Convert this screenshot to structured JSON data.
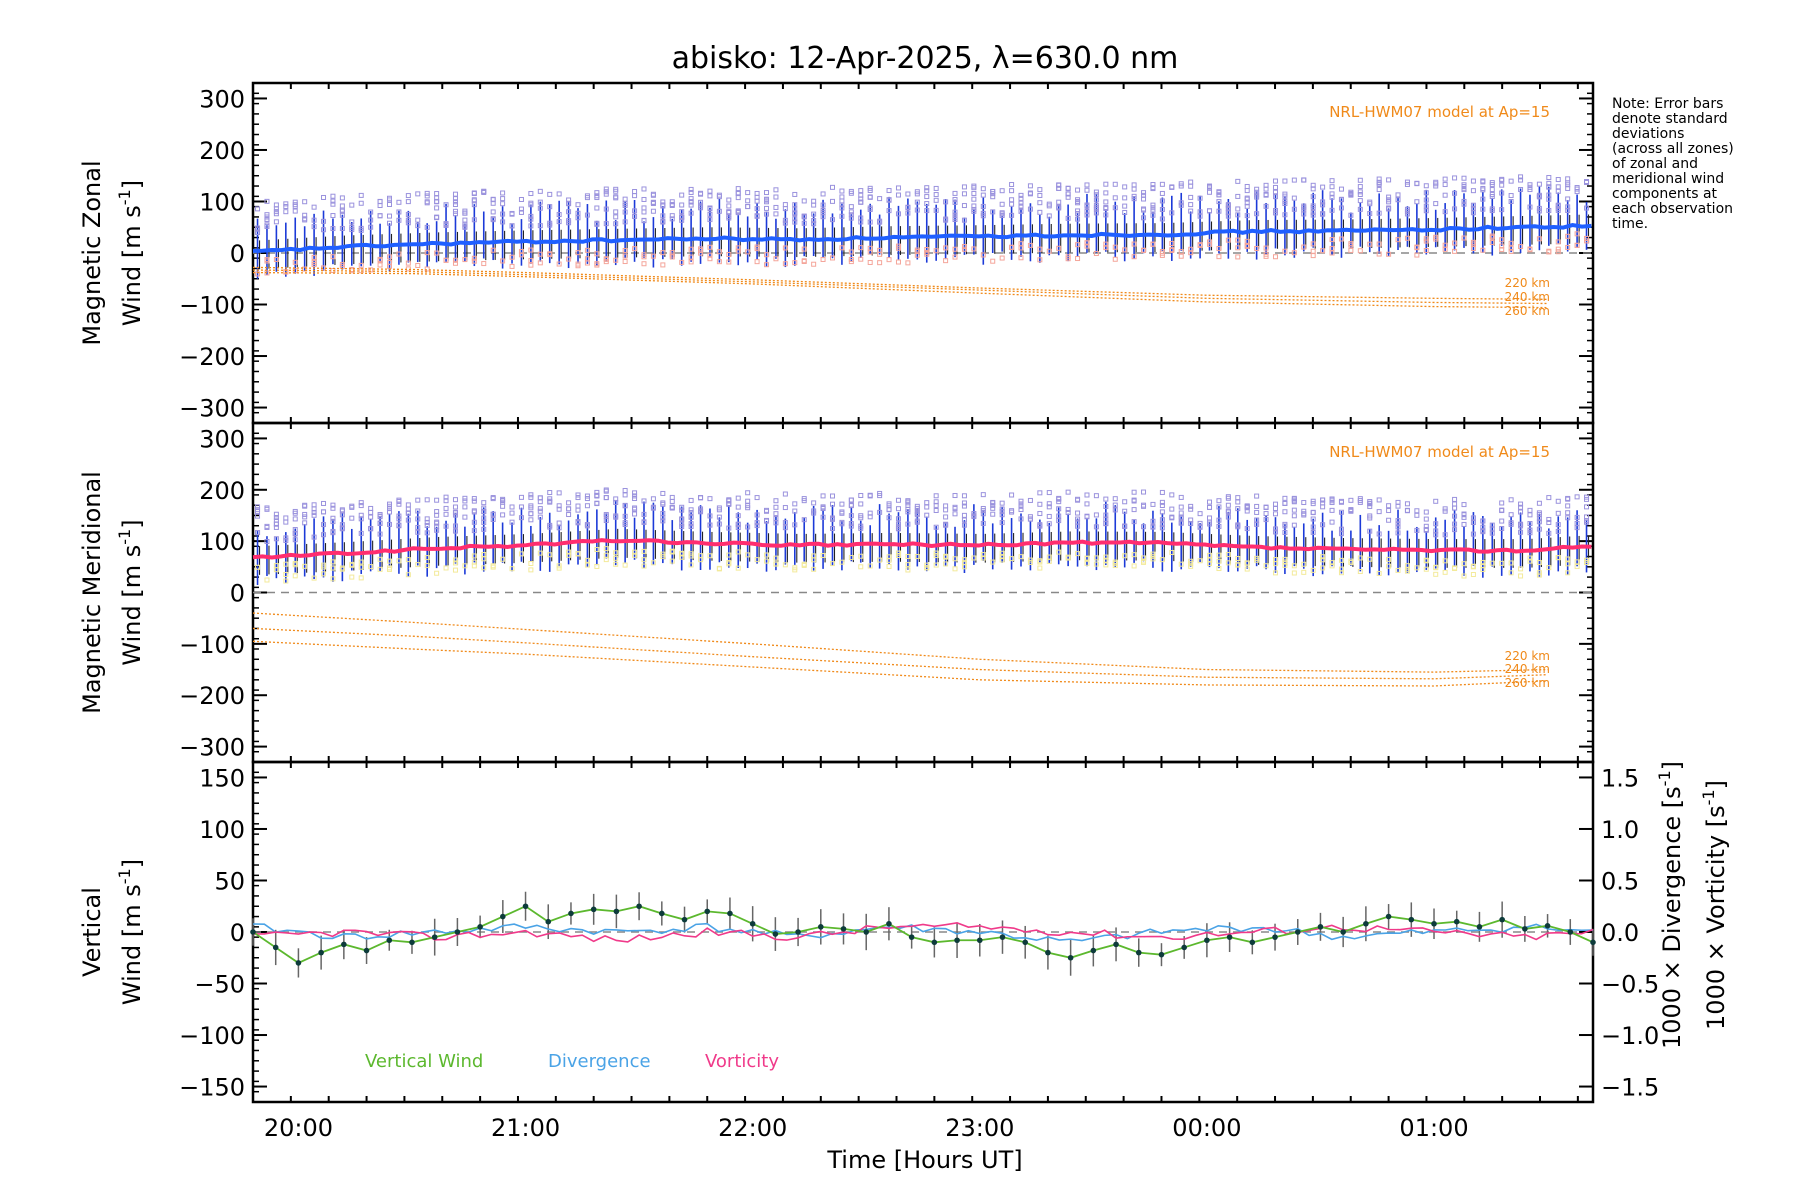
{
  "title": "abisko: 12-Apr-2025, λ=630.0 nm",
  "note": [
    "Note: Error bars",
    "denote standard",
    "deviations",
    "(across all zones)",
    "of zonal and",
    "meridional wind",
    "components at",
    "each observation",
    "time."
  ],
  "colors": {
    "model": "#f08a1a",
    "zonal_mean": "#1f5fff",
    "meridional_mean": "#ff2d6f",
    "spread_high": "#9a92dd",
    "spread_low_zonal": "#f4a59a",
    "spread_low_meridional": "#f3ea9a",
    "zone_bar": "#1c3ad8",
    "vertical": "#5cb82e",
    "divergence": "#4aa3e6",
    "vorticity": "#f03a8a",
    "errorbar": "#666666",
    "zero_line": "#888888"
  },
  "chart_data": [
    {
      "type": "line",
      "panel": "zonal",
      "ylabel": [
        "Magnetic Zonal",
        "Wind [m s",
        "-1",
        "]"
      ],
      "ylim": [
        -330,
        330
      ],
      "yticks": [
        "300",
        "200",
        "100",
        "0",
        "−100",
        "−200",
        "−300"
      ],
      "ytick_values": [
        300,
        200,
        100,
        0,
        -100,
        -200,
        -300
      ],
      "model_label": "NRL-HWM07 model at Ap=15",
      "model_heights": [
        "220 km",
        "240 km",
        "260 km"
      ],
      "series": [
        {
          "name": "Mean zonal wind",
          "x": [
            19.8,
            20.2,
            20.6,
            21.0,
            21.4,
            21.8,
            22.2,
            22.6,
            23.0,
            23.4,
            23.8,
            24.2,
            24.6,
            25.0,
            25.4,
            25.7
          ],
          "values": [
            2,
            12,
            18,
            22,
            25,
            28,
            26,
            30,
            32,
            35,
            36,
            42,
            43,
            46,
            50,
            53
          ]
        },
        {
          "name": "Model 220 km",
          "x": [
            19.8,
            20.5,
            21.0,
            22.0,
            23.0,
            24.0,
            25.0,
            25.5
          ],
          "values": [
            -28,
            -32,
            -38,
            -52,
            -68,
            -82,
            -88,
            -90
          ]
        },
        {
          "name": "Model 240 km",
          "x": [
            19.8,
            20.5,
            21.0,
            22.0,
            23.0,
            24.0,
            25.0,
            25.5
          ],
          "values": [
            -33,
            -36,
            -42,
            -56,
            -72,
            -88,
            -96,
            -98
          ]
        },
        {
          "name": "Model 260 km",
          "x": [
            19.8,
            20.5,
            21.0,
            22.0,
            23.0,
            24.0,
            25.0,
            25.5
          ],
          "values": [
            -38,
            -40,
            -46,
            -60,
            -78,
            -95,
            -104,
            -106
          ]
        }
      ]
    },
    {
      "type": "line",
      "panel": "meridional",
      "ylabel": [
        "Magnetic Meridional",
        "Wind [m s",
        "-1",
        "]"
      ],
      "ylim": [
        -330,
        330
      ],
      "yticks": [
        "300",
        "200",
        "100",
        "0",
        "−100",
        "−200",
        "−300"
      ],
      "ytick_values": [
        300,
        200,
        100,
        0,
        -100,
        -200,
        -300
      ],
      "model_label": "NRL-HWM07 model at Ap=15",
      "model_heights": [
        "220 km",
        "240 km",
        "260 km"
      ],
      "series": [
        {
          "name": "Mean meridional wind",
          "x": [
            19.8,
            20.2,
            20.6,
            21.0,
            21.4,
            21.8,
            22.2,
            22.6,
            23.0,
            23.4,
            23.8,
            24.2,
            24.6,
            25.0,
            25.4,
            25.7
          ],
          "values": [
            68,
            76,
            86,
            92,
            102,
            96,
            92,
            94,
            92,
            97,
            96,
            88,
            84,
            82,
            82,
            90
          ]
        },
        {
          "name": "Model 220 km",
          "x": [
            19.8,
            20.5,
            21.0,
            22.0,
            23.0,
            24.0,
            25.0,
            25.5
          ],
          "values": [
            -40,
            -58,
            -72,
            -100,
            -130,
            -150,
            -155,
            -150
          ]
        },
        {
          "name": "Model 240 km",
          "x": [
            19.8,
            20.5,
            21.0,
            22.0,
            23.0,
            24.0,
            25.0,
            25.5
          ],
          "values": [
            -70,
            -85,
            -98,
            -125,
            -150,
            -165,
            -168,
            -160
          ]
        },
        {
          "name": "Model 260 km",
          "x": [
            19.8,
            20.5,
            21.0,
            22.0,
            23.0,
            24.0,
            25.0,
            25.5
          ],
          "values": [
            -95,
            -110,
            -120,
            -145,
            -170,
            -180,
            -182,
            -172
          ]
        }
      ]
    },
    {
      "type": "line",
      "panel": "vertical",
      "ylabel": [
        "Vertical",
        "Wind [m s",
        "-1",
        "]"
      ],
      "ylim": [
        -165,
        165
      ],
      "yticks": [
        "150",
        "100",
        "50",
        "0",
        "−50",
        "−100",
        "−150"
      ],
      "ytick_values": [
        150,
        100,
        50,
        0,
        -50,
        -100,
        -150
      ],
      "y2lim": [
        -1.65,
        1.65
      ],
      "y2ticks": [
        "1.5",
        "1.0",
        "0.5",
        "0.0",
        "−0.5",
        "−1.0",
        "−1.5"
      ],
      "y2tick_values": [
        1.5,
        1.0,
        0.5,
        0.0,
        -0.5,
        -1.0,
        -1.5
      ],
      "y2label_div": [
        "1000 × Divergence [s",
        "-1",
        "]"
      ],
      "y2label_vor": [
        "1000 × Vorticity [s",
        "-1",
        "]"
      ],
      "legend": [
        "Vertical Wind",
        "Divergence",
        "Vorticity"
      ],
      "series": [
        {
          "name": "Vertical Wind",
          "x": [
            19.8,
            19.9,
            20.0,
            20.1,
            20.2,
            20.3,
            20.4,
            20.5,
            20.6,
            20.7,
            20.8,
            20.9,
            21.0,
            21.1,
            21.2,
            21.3,
            21.4,
            21.5,
            21.6,
            21.7,
            21.8,
            21.9,
            22.0,
            22.1,
            22.2,
            22.3,
            22.4,
            22.5,
            22.6,
            22.7,
            22.8,
            22.9,
            23.0,
            23.1,
            23.2,
            23.3,
            23.4,
            23.5,
            23.6,
            23.7,
            23.8,
            23.9,
            24.0,
            24.1,
            24.2,
            24.3,
            24.4,
            24.5,
            24.6,
            24.7,
            24.8,
            24.9,
            25.0,
            25.1,
            25.2,
            25.3,
            25.4,
            25.5,
            25.6,
            25.7
          ],
          "values": [
            0,
            -15,
            -30,
            -20,
            -12,
            -18,
            -8,
            -10,
            -5,
            0,
            5,
            15,
            25,
            10,
            18,
            22,
            20,
            25,
            18,
            12,
            20,
            18,
            8,
            -2,
            0,
            5,
            3,
            0,
            8,
            -5,
            -10,
            -8,
            -8,
            -5,
            -10,
            -20,
            -25,
            -18,
            -12,
            -20,
            -22,
            -15,
            -8,
            -5,
            -10,
            -5,
            0,
            5,
            0,
            8,
            15,
            12,
            8,
            10,
            5,
            12,
            3,
            6,
            0,
            -10
          ]
        },
        {
          "name": "Divergence",
          "x": [
            19.8,
            20.2,
            20.6,
            21.0,
            21.4,
            21.8,
            22.2,
            22.6,
            23.0,
            23.4,
            23.8,
            24.2,
            24.6,
            25.0,
            25.4,
            25.7
          ],
          "values": [
            0.05,
            -0.05,
            0.0,
            0.05,
            0.0,
            0.05,
            -0.05,
            0.05,
            0.0,
            -0.1,
            0.0,
            0.05,
            -0.05,
            0.0,
            0.05,
            0.0
          ]
        },
        {
          "name": "Vorticity",
          "x": [
            19.8,
            20.2,
            20.6,
            21.0,
            21.4,
            21.8,
            22.2,
            22.6,
            23.0,
            23.4,
            23.8,
            24.2,
            24.6,
            25.0,
            25.4,
            25.7
          ],
          "values": [
            -0.05,
            0.0,
            -0.05,
            0.0,
            -0.08,
            0.0,
            -0.05,
            0.05,
            0.05,
            0.0,
            -0.05,
            0.0,
            0.05,
            0.0,
            -0.05,
            0.0
          ]
        }
      ]
    }
  ],
  "xaxis": {
    "xlim": [
      19.8,
      25.7
    ],
    "label": "Time [Hours UT]",
    "tick_values": [
      20,
      21,
      22,
      23,
      24,
      25
    ],
    "tick_labels": [
      "20:00",
      "21:00",
      "22:00",
      "23:00",
      "00:00",
      "01:00"
    ]
  }
}
